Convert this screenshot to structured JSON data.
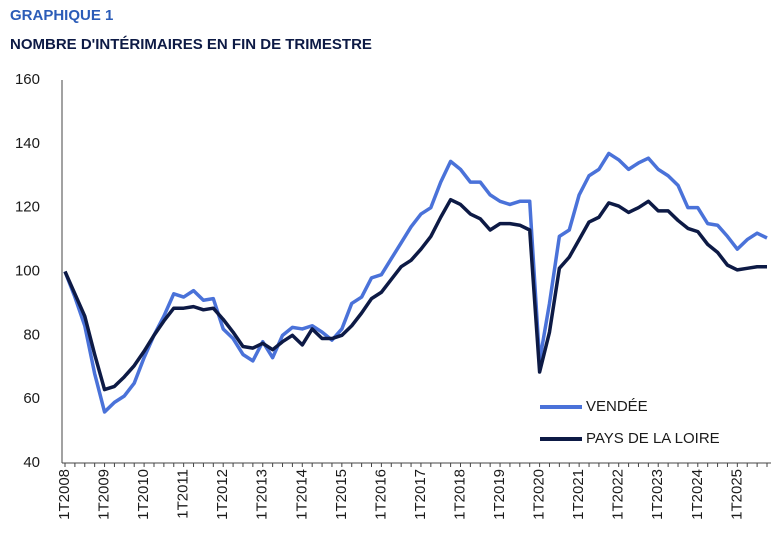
{
  "chart_data": {
    "type": "line",
    "title": "GRAPHIQUE 1",
    "subtitle": "NOMBRE D'INTÉRIMAIRES EN FIN DE TRIMESTRE",
    "categories": [
      "1T2008",
      null,
      null,
      null,
      "1T2009",
      null,
      null,
      null,
      "1T2010",
      null,
      null,
      null,
      "1T2011",
      null,
      null,
      null,
      "1T2012",
      null,
      null,
      null,
      "1T2013",
      null,
      null,
      null,
      "1T2014",
      null,
      null,
      null,
      "1T2015",
      null,
      null,
      null,
      "1T2016",
      null,
      null,
      null,
      "1T2017",
      null,
      null,
      null,
      "1T2018",
      null,
      null,
      null,
      "1T2019",
      null,
      null,
      null,
      "1T2020",
      null,
      null,
      null,
      "1T2021",
      null,
      null,
      null,
      "1T2022",
      null,
      null,
      null,
      "1T2023",
      null,
      null,
      null,
      "1T2024",
      null,
      null,
      null,
      "1T2025",
      null,
      null,
      null
    ],
    "series": [
      {
        "name": "VENDÉE",
        "color": "#4a72d9",
        "values": [
          100,
          92,
          83,
          68,
          56,
          59,
          61,
          65,
          73,
          80,
          86,
          93,
          92,
          94,
          91,
          91.5,
          82,
          79,
          74,
          72,
          78,
          73,
          80,
          82.5,
          82,
          83,
          81,
          78.5,
          82,
          90,
          92,
          98,
          99,
          104,
          109,
          114,
          118,
          120,
          128,
          134.5,
          132,
          128,
          128,
          124,
          122,
          121,
          122,
          122,
          72,
          90,
          111,
          113,
          124,
          130,
          132,
          137,
          135,
          132,
          134,
          135.5,
          132,
          130,
          127,
          120,
          120,
          115,
          114.5,
          111,
          107,
          110,
          112,
          110.5
        ]
      },
      {
        "name": "PAYS DE LA LOIRE",
        "color": "#0d1a45",
        "values": [
          100,
          93,
          86,
          74,
          63,
          64,
          67,
          70.5,
          75,
          80,
          84.5,
          88.5,
          88.5,
          89,
          88,
          88.5,
          85,
          81,
          76.5,
          76,
          77.5,
          75.5,
          78,
          80,
          77,
          82,
          79,
          79,
          80,
          83,
          87,
          91.5,
          93.5,
          97.5,
          101.5,
          103.5,
          107,
          111,
          117,
          122.5,
          121,
          118,
          116.5,
          113,
          115,
          115,
          114.5,
          113,
          68.5,
          81,
          101,
          104.5,
          110,
          115.5,
          117,
          121.5,
          120.5,
          118.5,
          120,
          122,
          119,
          119,
          116,
          113.5,
          112.5,
          108.5,
          106,
          102,
          100.5,
          101,
          101.5,
          101.5
        ]
      }
    ],
    "ylim": [
      40,
      160
    ],
    "yticks": [
      40,
      60,
      80,
      100,
      120,
      140,
      160
    ],
    "legend": "lower right"
  }
}
